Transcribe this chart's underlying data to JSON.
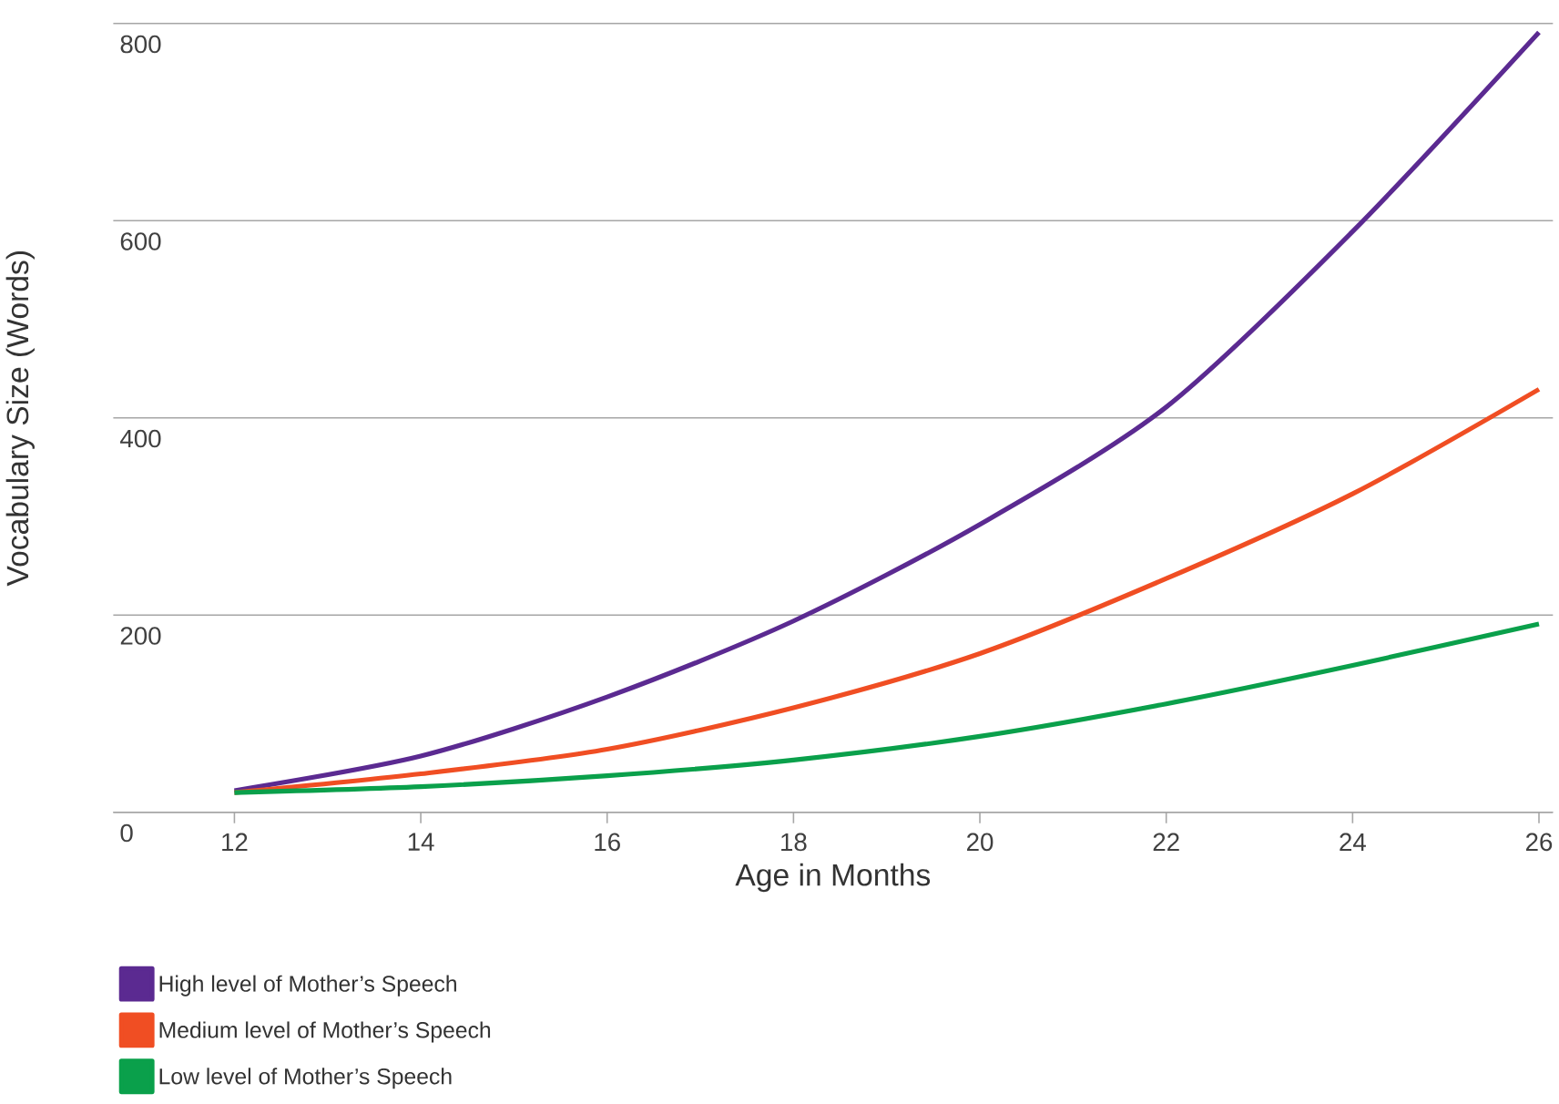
{
  "chart_data": {
    "type": "line",
    "xlabel": "Age in Months",
    "ylabel": "Vocabulary Size (Words)",
    "x": [
      12,
      14,
      16,
      18,
      20,
      22,
      24,
      26
    ],
    "series": [
      {
        "name": "High level of Mother’s Speech",
        "color": "#5b2a91",
        "values": [
          22,
          57,
          117,
          194,
          292,
          411,
          589,
          791
        ]
      },
      {
        "name": "Medium level of Mother’s Speech",
        "color": "#f04e23",
        "values": [
          20,
          39,
          64,
          106,
          161,
          237,
          323,
          429
        ]
      },
      {
        "name": "Low level of Mother’s Speech",
        "color": "#0aa04b",
        "values": [
          20,
          26,
          37,
          53,
          77,
          110,
          149,
          191
        ]
      }
    ],
    "xlim": [
      10.7,
      26.15
    ],
    "ylim": [
      0,
      800
    ],
    "xticks": [
      12,
      14,
      16,
      18,
      20,
      22,
      24,
      26
    ],
    "yticks": [
      0,
      200,
      400,
      600,
      800
    ],
    "grid": "y",
    "legend": "bottom left",
    "marker": "none",
    "line_style": "solid"
  }
}
